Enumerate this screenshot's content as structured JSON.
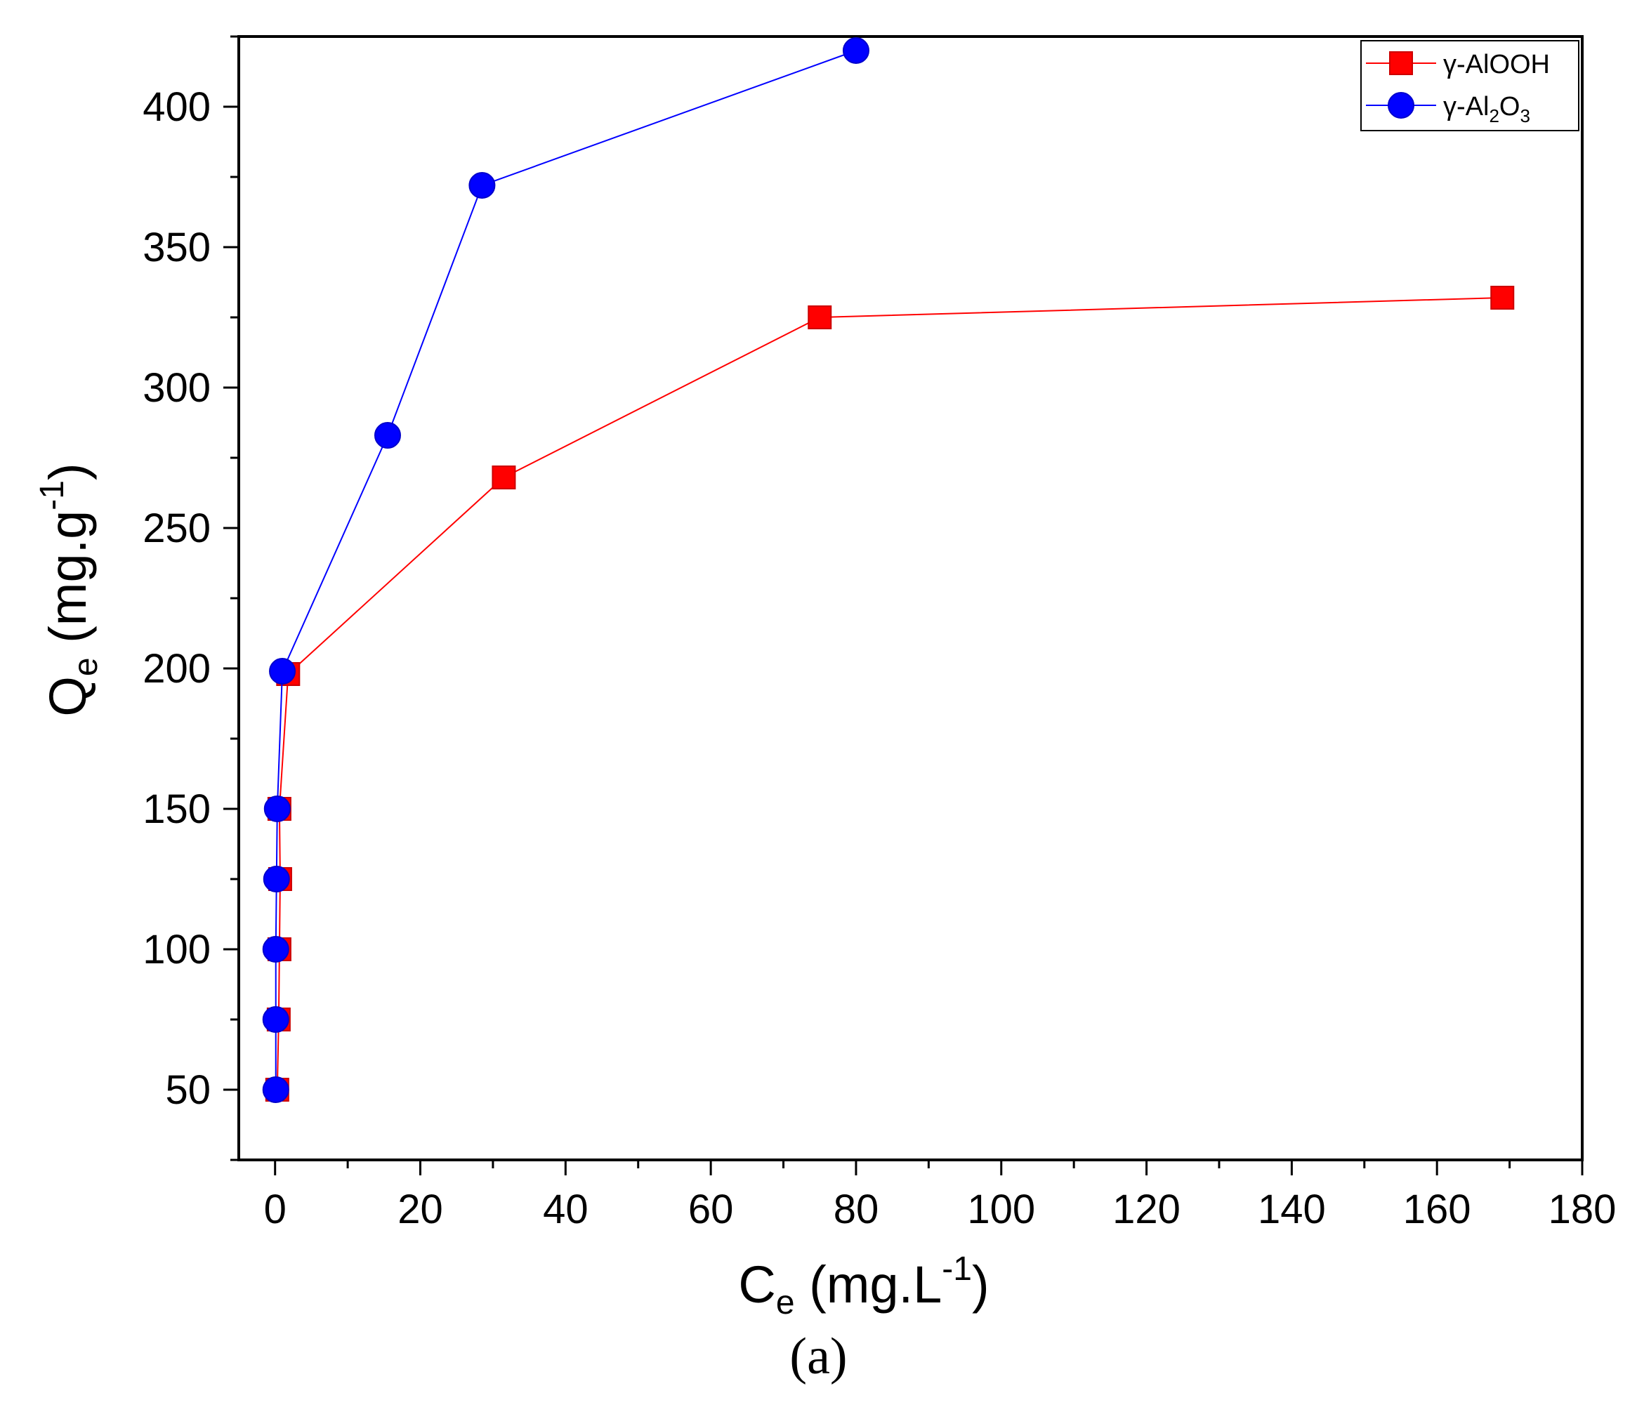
{
  "chart_data": {
    "type": "line",
    "xlabel": {
      "base": "C",
      "sub": "e",
      "pre": " (mg.L",
      "sup": "-1",
      "post": ")"
    },
    "ylabel": {
      "base": "Q",
      "sub": "e",
      "pre": " (mg.g",
      "sup": "-1",
      "post": ")"
    },
    "xlim": [
      -5,
      180
    ],
    "ylim": [
      25,
      425
    ],
    "xticks": [
      0,
      20,
      40,
      60,
      80,
      100,
      120,
      140,
      160,
      180
    ],
    "yticks": [
      50,
      100,
      150,
      200,
      250,
      300,
      350,
      400
    ],
    "xtick_labels": [
      "0",
      "20",
      "40",
      "60",
      "80",
      "100",
      "120",
      "140",
      "160",
      "180"
    ],
    "ytick_labels": [
      "50",
      "100",
      "150",
      "200",
      "250",
      "300",
      "350",
      "400"
    ],
    "legend_position": "top-right",
    "series": [
      {
        "name": "γ-AlOOH",
        "label_parts": {
          "base": "γ-AlOOH"
        },
        "marker": "square",
        "color": "#ff0000",
        "points": [
          [
            0.3,
            50
          ],
          [
            0.5,
            75
          ],
          [
            0.6,
            100
          ],
          [
            0.7,
            125
          ],
          [
            0.6,
            150
          ],
          [
            1.8,
            198
          ],
          [
            31.5,
            268
          ],
          [
            75,
            325
          ],
          [
            169,
            332
          ]
        ]
      },
      {
        "name": "γ-Al2O3",
        "label_parts": {
          "base": "γ-Al",
          "sub1": "2",
          "mid": "O",
          "sub2": "3"
        },
        "marker": "circle",
        "color": "#0000ff",
        "points": [
          [
            0.1,
            50
          ],
          [
            0.1,
            75
          ],
          [
            0.1,
            100
          ],
          [
            0.2,
            125
          ],
          [
            0.3,
            150
          ],
          [
            1.0,
            199
          ],
          [
            15.5,
            283
          ],
          [
            28.5,
            372
          ],
          [
            80,
            420
          ]
        ]
      }
    ]
  },
  "caption": "(a)"
}
